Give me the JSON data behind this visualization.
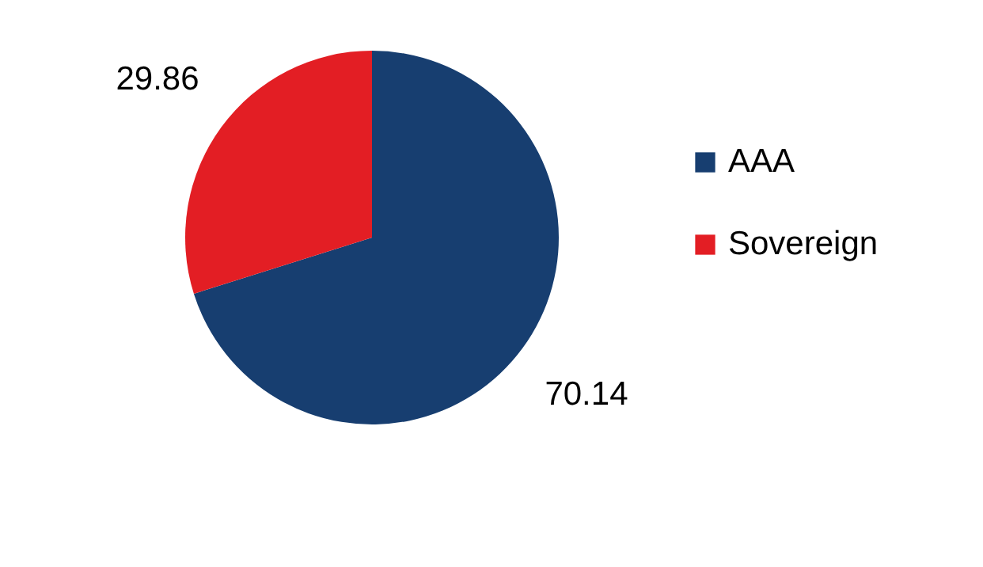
{
  "chart_data": {
    "type": "pie",
    "categories": [
      "AAA",
      "Sovereign"
    ],
    "values": [
      70.14,
      29.86
    ],
    "colors": [
      "#173e70",
      "#e31e24"
    ],
    "data_labels": true,
    "legend": "right"
  }
}
